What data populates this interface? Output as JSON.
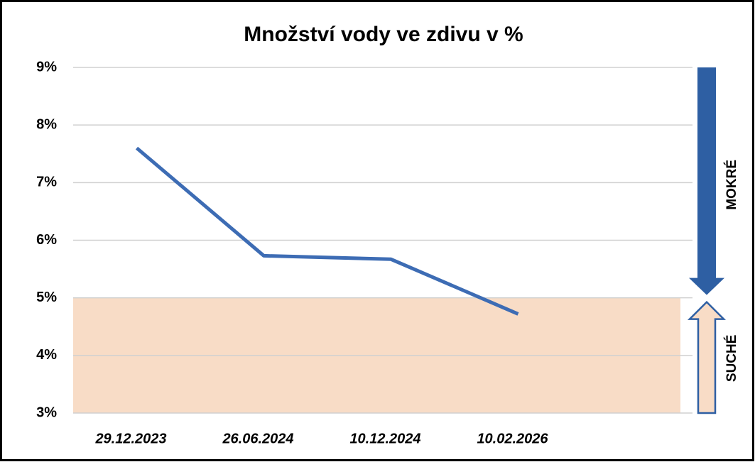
{
  "chart_data": {
    "type": "line",
    "title": "Množství vody ve zdivu v %",
    "categories": [
      "29.12.2023",
      "26.06.2024",
      "10.12.2024",
      "10.02.2026"
    ],
    "values": [
      7.6,
      5.73,
      5.67,
      4.72
    ],
    "color": "#3d6cb4",
    "ylim": [
      3,
      9
    ],
    "yticks": [
      {
        "value": 3,
        "label": "3%"
      },
      {
        "value": 4,
        "label": "4%"
      },
      {
        "value": 5,
        "label": "5%"
      },
      {
        "value": 6,
        "label": "6%"
      },
      {
        "value": 7,
        "label": "7%"
      },
      {
        "value": 8,
        "label": "8%"
      },
      {
        "value": 9,
        "label": "9%"
      }
    ],
    "grid": true,
    "shaded_range": [
      3,
      5
    ],
    "shaded_color": "#f8dcc6",
    "annotations": [
      "MOKRÉ",
      "SUCHÉ"
    ]
  }
}
